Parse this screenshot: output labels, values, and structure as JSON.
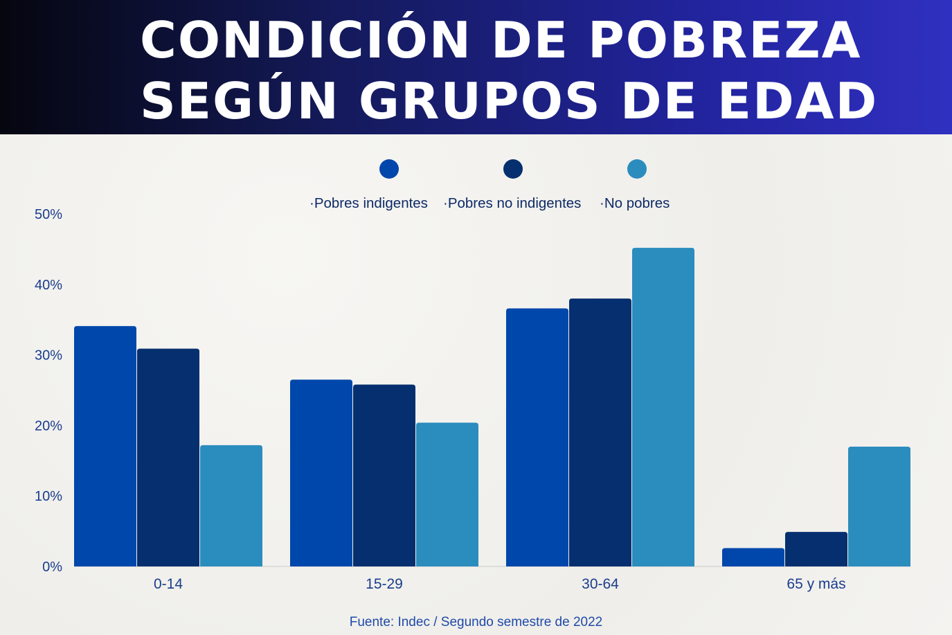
{
  "header": {
    "title_line1": "CONDICIÓN DE POBREZA",
    "title_line2": "SEGÚN GRUPOS DE EDAD"
  },
  "source": "Fuente: Indec / Segundo semestre de 2022",
  "chart_data": {
    "type": "bar",
    "title": "CONDICIÓN DE POBREZA SEGÚN GRUPOS DE EDAD",
    "categories": [
      "0-14",
      "15-29",
      "30-64",
      "65 y más"
    ],
    "series": [
      {
        "name": "Pobres indigentes",
        "color": "#0047ab",
        "values": [
          34.1,
          26.5,
          36.6,
          2.6
        ]
      },
      {
        "name": "Pobres no indigentes",
        "color": "#052f6e",
        "values": [
          30.9,
          25.8,
          38.0,
          4.9
        ]
      },
      {
        "name": "No pobres",
        "color": "#2b8cbe",
        "values": [
          17.2,
          20.4,
          45.2,
          17.0
        ]
      }
    ],
    "ylim": [
      0,
      50
    ],
    "yticks": [
      "0%",
      "10%",
      "20%",
      "30%",
      "40%",
      "50%"
    ],
    "grid": false,
    "legend": "top-center"
  }
}
